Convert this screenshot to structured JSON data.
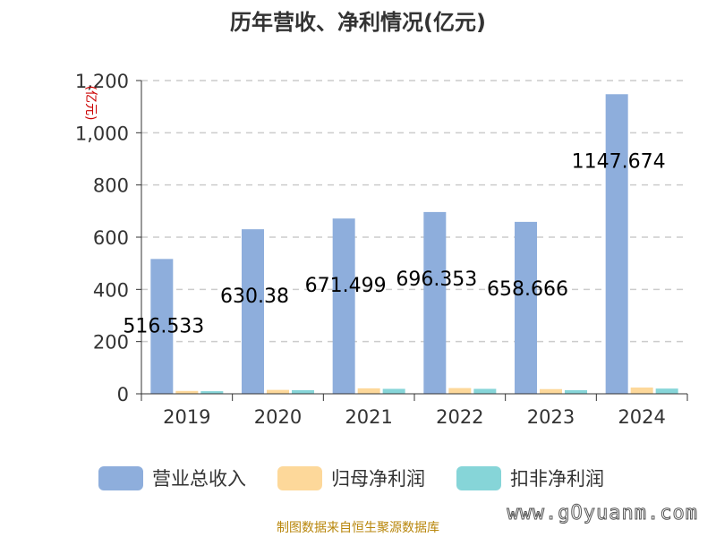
{
  "chart_data": {
    "type": "bar",
    "title": "历年营收、净利情况(亿元)",
    "ylabel": "(亿元)",
    "xlabel": "",
    "categories": [
      "2019",
      "2020",
      "2021",
      "2022",
      "2023",
      "2024"
    ],
    "ylim": [
      0,
      1200
    ],
    "yticks": [
      0,
      200,
      400,
      600,
      800,
      1000,
      1200
    ],
    "ytick_labels": [
      "0",
      "200",
      "400",
      "600",
      "800",
      "1,000",
      "1,200"
    ],
    "grid": true,
    "legend_position": "bottom",
    "series": [
      {
        "name": "营业总收入",
        "color": "#8eaedc",
        "values": [
          516.533,
          630.38,
          671.499,
          696.353,
          658.666,
          1147.674
        ],
        "labels": [
          "516.533",
          "630.38",
          "671.499",
          "696.353",
          "658.666",
          "1147.674"
        ]
      },
      {
        "name": "归母净利润",
        "color": "#fdd89a",
        "values": [
          11,
          15,
          21,
          22,
          18,
          24
        ]
      },
      {
        "name": "扣非净利润",
        "color": "#86d5d8",
        "values": [
          10,
          14,
          19,
          19,
          14,
          20
        ]
      }
    ]
  },
  "footer": {
    "source": "制图数据来自恒生聚源数据库",
    "watermark": "www.gOyuanm.com"
  }
}
